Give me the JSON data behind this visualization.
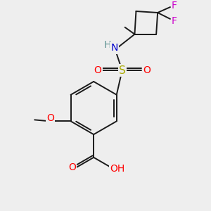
{
  "background_color": "#eeeeee",
  "bond_color": "#1a1a1a",
  "atom_colors": {
    "O": "#ff0000",
    "N": "#0000cc",
    "S": "#aaaa00",
    "F": "#cc00cc",
    "H": "#5a9090",
    "C": "#1a1a1a"
  },
  "font_size": 10,
  "lw": 1.4
}
